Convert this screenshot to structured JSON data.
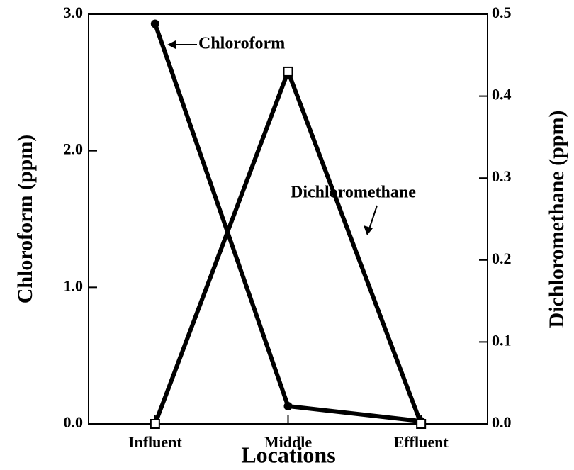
{
  "chart_data": {
    "type": "line",
    "categories": [
      "Influent",
      "Middle",
      "Effluent"
    ],
    "series": [
      {
        "name": "Chloroform",
        "color": "#000000",
        "marker": "circle",
        "values": [
          2.93,
          0.13,
          0.02
        ]
      },
      {
        "name": "Dichloromethane",
        "color": "#000000",
        "marker": "square",
        "axis": "y2",
        "values": [
          0,
          0.43,
          0
        ]
      }
    ],
    "ylim": [
      0,
      3
    ],
    "yticks": [
      {
        "value": 0,
        "label": "0.0"
      },
      {
        "value": 1,
        "label": "1.0"
      },
      {
        "value": 2,
        "label": "2.0"
      },
      {
        "value": 3,
        "label": "3.0"
      }
    ],
    "y2lim": [
      0,
      0.5
    ],
    "y2ticks": [
      {
        "value": 0,
        "label": "0.0"
      },
      0.1,
      0.2,
      0.3,
      0.4,
      0.5
    ],
    "ylabel": "Chloroform  (ppm)",
    "y2label": "Dichloromethane  (ppm)",
    "xlabel": "Locations",
    "annotations": [
      "Chloroform",
      "Dichloromethane"
    ],
    "grid": false
  }
}
